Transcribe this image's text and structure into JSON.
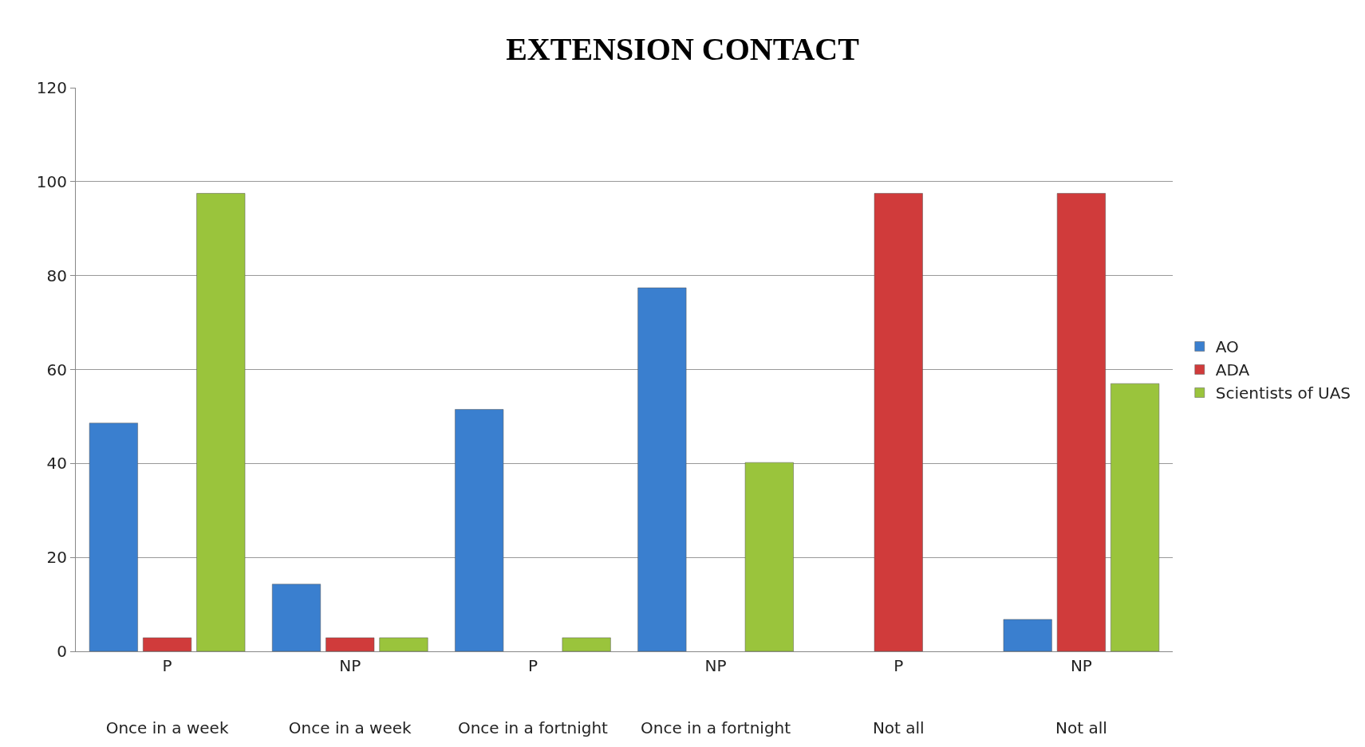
{
  "chart_data": {
    "type": "bar",
    "title": "EXTENSION CONTACT",
    "categories": [
      "P\nOnce in a week",
      "NP\nOnce in a week",
      "P\nOnce in a fortnight",
      "NP\nOnce in a fortnight",
      "P\nNot all",
      "NP\nNot all"
    ],
    "series": [
      {
        "name": "AO",
        "color": "#3a7fcf",
        "values": [
          48.6,
          14.3,
          51.5,
          77.4,
          null,
          6.8
        ]
      },
      {
        "name": "ADA",
        "color": "#d03b3b",
        "values": [
          2.9,
          2.9,
          null,
          null,
          97.5,
          97.5
        ]
      },
      {
        "name": "Scientists of UAS",
        "color": "#9ac43c",
        "values": [
          97.5,
          2.9,
          2.9,
          40.2,
          null,
          57
        ]
      }
    ],
    "ylim": [
      0,
      120
    ],
    "yticks": [
      0,
      20,
      40,
      60,
      80,
      100,
      120
    ],
    "grid": "y",
    "legend": "right"
  }
}
